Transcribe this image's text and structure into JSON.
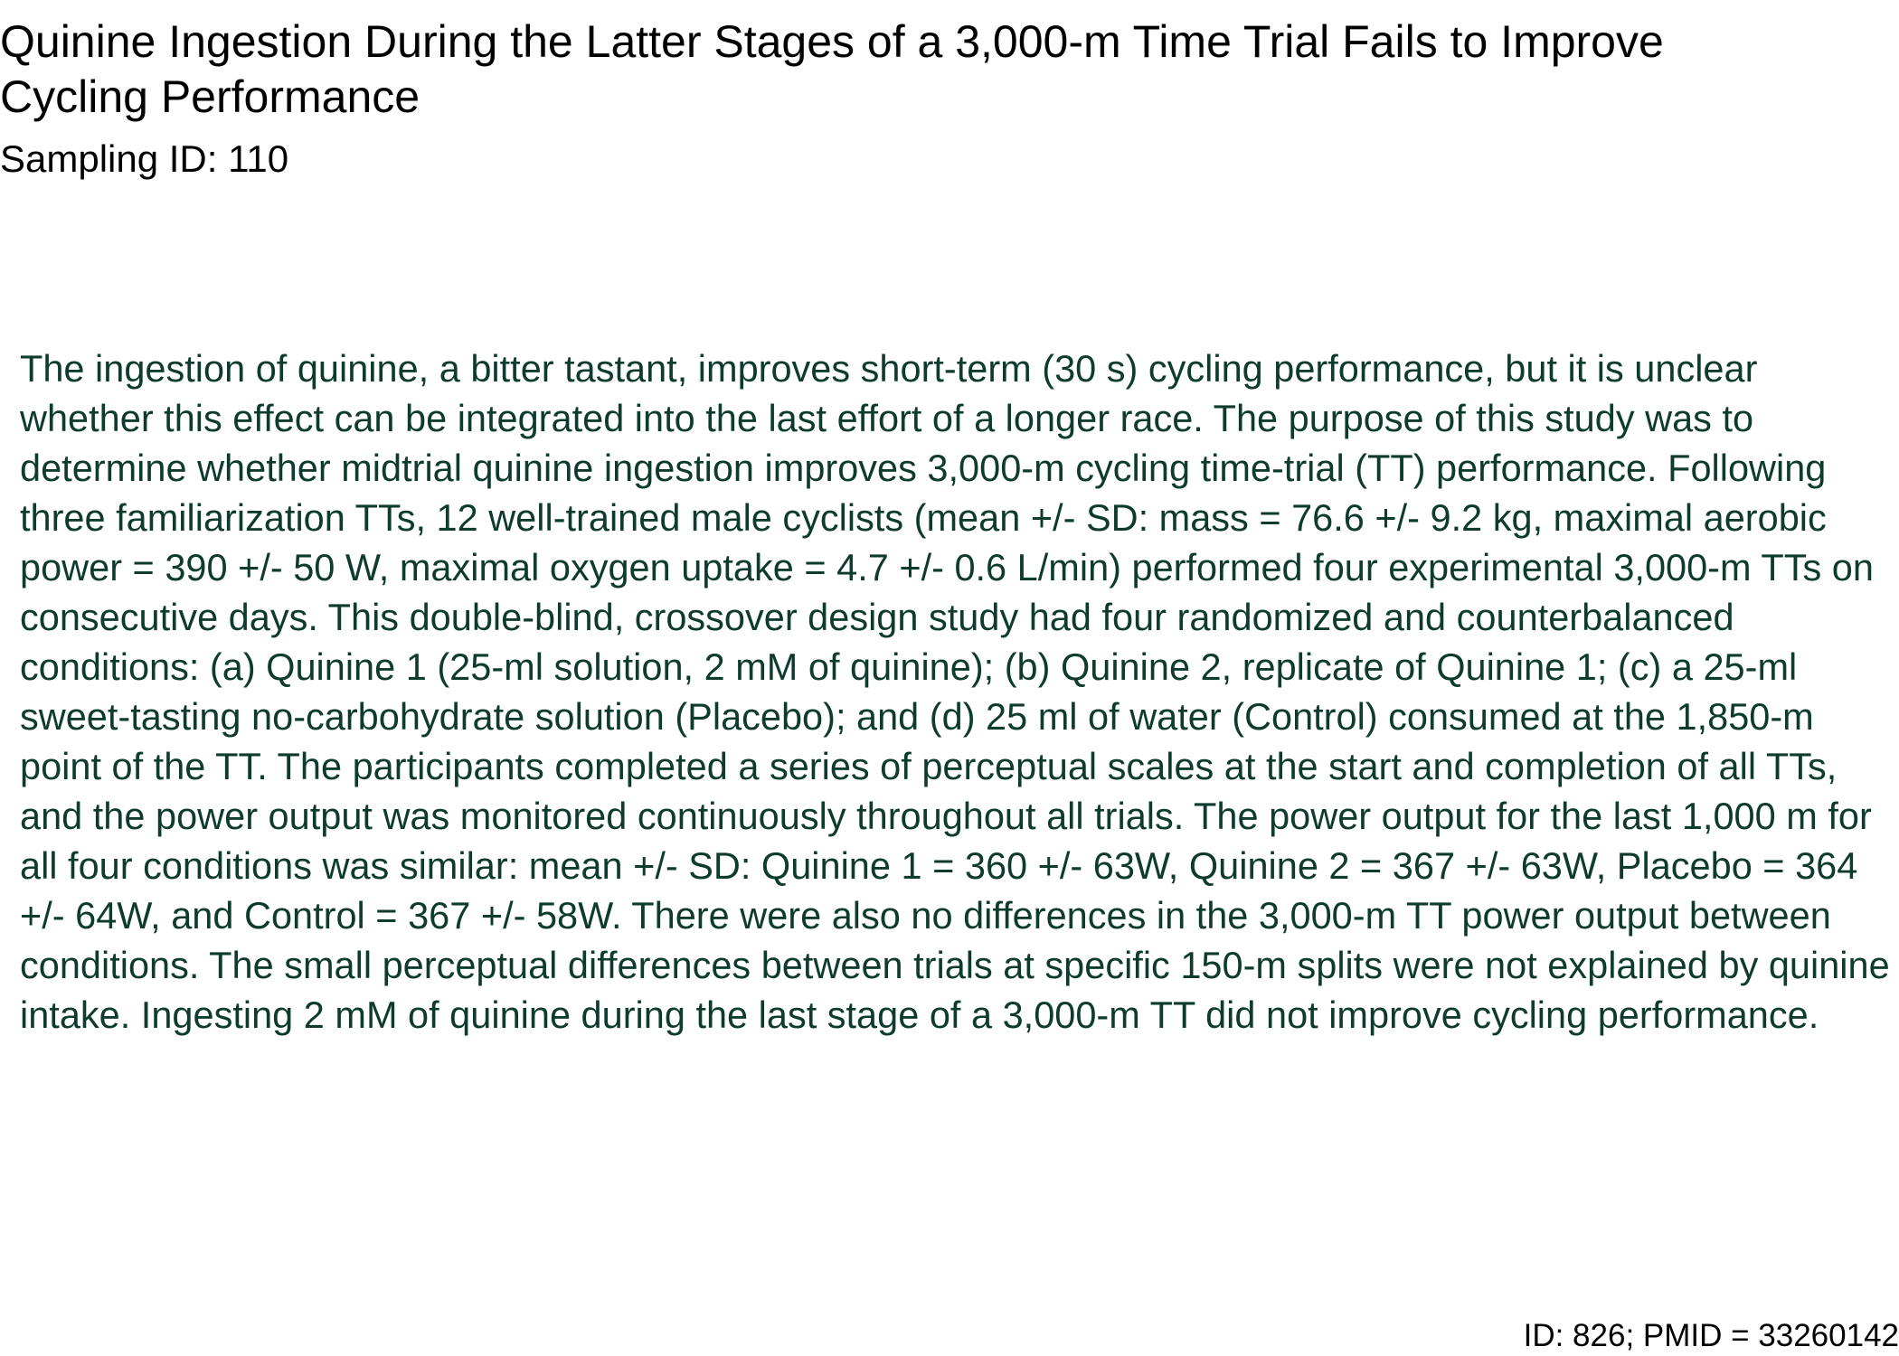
{
  "document": {
    "title": "Quinine Ingestion During the Latter Stages of a 3,000-m Time Trial Fails to Improve Cycling Performance",
    "sampling_id": "Sampling ID: 110",
    "abstract": "The ingestion of quinine, a bitter tastant, improves short-term (30 s) cycling performance, but it is unclear whether this effect can be integrated into the last effort of a longer race. The purpose of this study was to determine whether midtrial quinine ingestion improves 3,000-m cycling time-trial (TT) performance. Following three familiarization TTs, 12 well-trained male cyclists (mean +/- SD: mass = 76.6 +/- 9.2 kg, maximal aerobic power = 390 +/- 50 W, maximal oxygen uptake = 4.7 +/- 0.6 L/min) performed four experimental 3,000-m TTs on consecutive days. This double-blind, crossover design study had four randomized and counterbalanced conditions: (a) Quinine 1 (25-ml solution, 2 mM of quinine); (b) Quinine 2, replicate of Quinine 1; (c) a 25-ml sweet-tasting no-carbohydrate solution (Placebo); and (d) 25 ml of water (Control) consumed at the 1,850-m point of the TT. The participants completed a series of perceptual scales at the start and completion of all TTs, and the power output was monitored continuously throughout all trials. The power output for the last 1,000 m for all four conditions was similar: mean +/- SD: Quinine 1 = 360 +/- 63W, Quinine 2 = 367 +/- 63W, Placebo = 364 +/- 64W, and Control = 367 +/- 58W. There were also no differences in the 3,000-m TT power output between conditions. The small perceptual differences between trials at specific 150-m splits were not explained by quinine intake. Ingesting 2 mM of quinine during the last stage of a 3,000-m TT did not improve cycling performance.",
    "footer_id": "ID: 826; PMID = 33260142"
  },
  "colors": {
    "title_text": "#000000",
    "abstract_text": "#0d3b2e",
    "background": "#ffffff"
  }
}
